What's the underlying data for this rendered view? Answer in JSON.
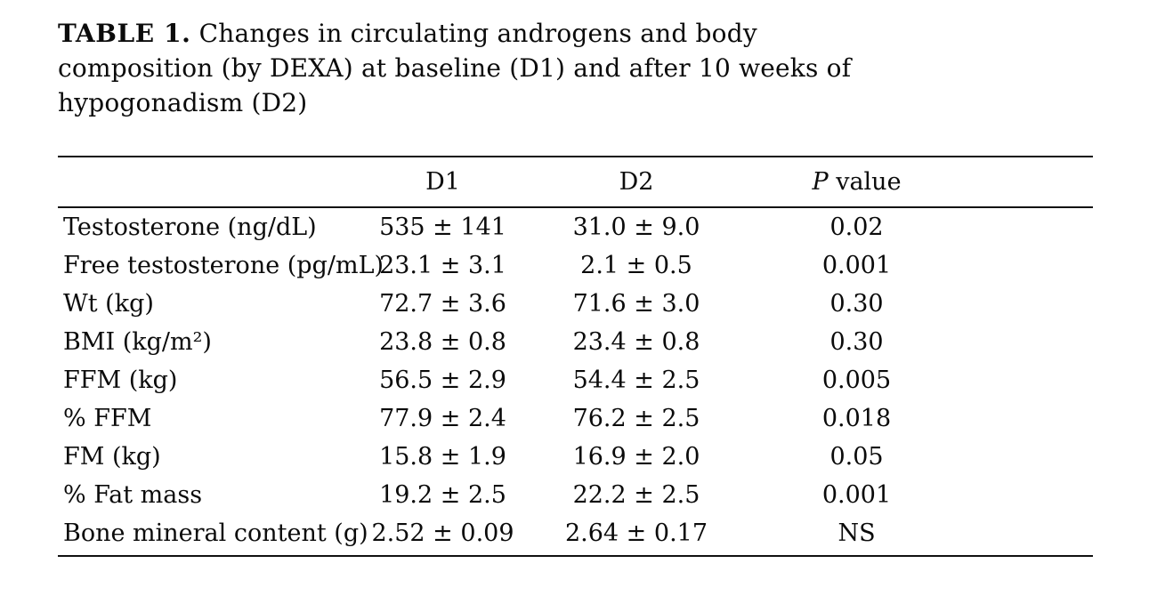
{
  "title": {
    "label": "TABLE 1.",
    "line1_rest": " Changes in circulating androgens and body",
    "line2": "composition (by DEXA) at baseline (D1) and after 10 weeks of",
    "line3": "hypogonadism (D2)"
  },
  "table": {
    "header": {
      "d1": "D1",
      "d2": "D2",
      "p_label": "P",
      "p_rest": " value"
    },
    "rows": [
      {
        "label": "Testosterone (ng/dL)",
        "d1": "535 ± 141",
        "d2": "31.0 ± 9.0",
        "p": "0.02"
      },
      {
        "label": "Free testosterone (pg/mL)",
        "d1": "23.1 ± 3.1",
        "d2": "2.1 ± 0.5",
        "p": "0.001"
      },
      {
        "label": "Wt (kg)",
        "d1": "72.7 ± 3.6",
        "d2": "71.6 ± 3.0",
        "p": "0.30"
      },
      {
        "label": "BMI (kg/m²)",
        "d1": "23.8 ± 0.8",
        "d2": "23.4 ± 0.8",
        "p": "0.30"
      },
      {
        "label": "FFM (kg)",
        "d1": "56.5 ± 2.9",
        "d2": "54.4 ± 2.5",
        "p": "0.005"
      },
      {
        "label": "% FFM",
        "d1": "77.9 ± 2.4",
        "d2": "76.2 ± 2.5",
        "p": "0.018"
      },
      {
        "label": "FM (kg)",
        "d1": "15.8 ± 1.9",
        "d2": "16.9 ± 2.0",
        "p": "0.05"
      },
      {
        "label": "% Fat mass",
        "d1": "19.2 ± 2.5",
        "d2": "22.2 ± 2.5",
        "p": "0.001"
      },
      {
        "label": "Bone mineral content (g)",
        "d1": "2.52 ± 0.09",
        "d2": "2.64 ± 0.17",
        "p": "NS"
      }
    ]
  }
}
